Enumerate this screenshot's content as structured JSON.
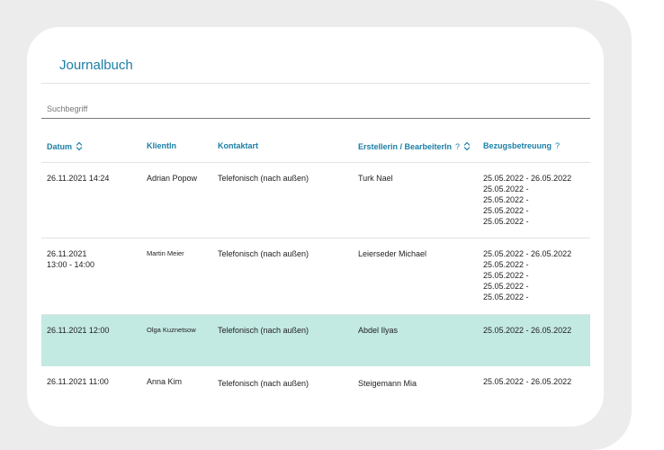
{
  "page": {
    "title": "Journalbuch"
  },
  "search": {
    "placeholder": "Suchbegriff"
  },
  "columns": {
    "datum": "Datum",
    "klient": "KlientIn",
    "kontaktart": "Kontaktart",
    "ersteller": "Erstellerin / BearbeiterIn",
    "ersteller_help": "?",
    "bezug": "Bezugsbetreuung",
    "bezug_help": "?"
  },
  "rows": [
    {
      "datum_line1": "26.11.2021 14:24",
      "datum_line2": "",
      "klient": "Adrian Popow",
      "kontaktart": "Telefonisch (nach außen)",
      "ersteller": "Turk Nael",
      "bezug": [
        "25.05.2022 - 26.05.2022",
        "25.05.2022 -",
        "25.05.2022 -",
        "25.05.2022 -",
        "25.05.2022 -"
      ]
    },
    {
      "datum_line1": "26.11.2021",
      "datum_line2": "13:00 - 14:00",
      "klient": "Martin Meier",
      "kontaktart": "Telefonisch (nach außen)",
      "ersteller": "Leierseder Michael",
      "bezug": [
        "25.05.2022 - 26.05.2022",
        "25.05.2022 -",
        "25.05.2022 -",
        "25.05.2022 -",
        "25.05.2022 -"
      ]
    },
    {
      "datum_line1": "26.11.2021 12:00",
      "datum_line2": "",
      "klient": "Olga Kuznetsow",
      "kontaktart": "Telefonisch (nach außen)",
      "ersteller": "Abdel Ilyas",
      "bezug": [
        "25.05.2022 - 26.05.2022"
      ]
    },
    {
      "datum_line1": "26.11.2021 11:00",
      "datum_line2": "",
      "klient": "Anna Kim",
      "kontaktart": "Telefonisch (nach außen)",
      "ersteller": "Steigemann Mia",
      "bezug": [
        "25.05.2022 - 26.05.2022"
      ]
    }
  ],
  "colors": {
    "accent": "#1a7ea6",
    "selected_row": "#c3e9e3",
    "frame": "#ececec"
  }
}
